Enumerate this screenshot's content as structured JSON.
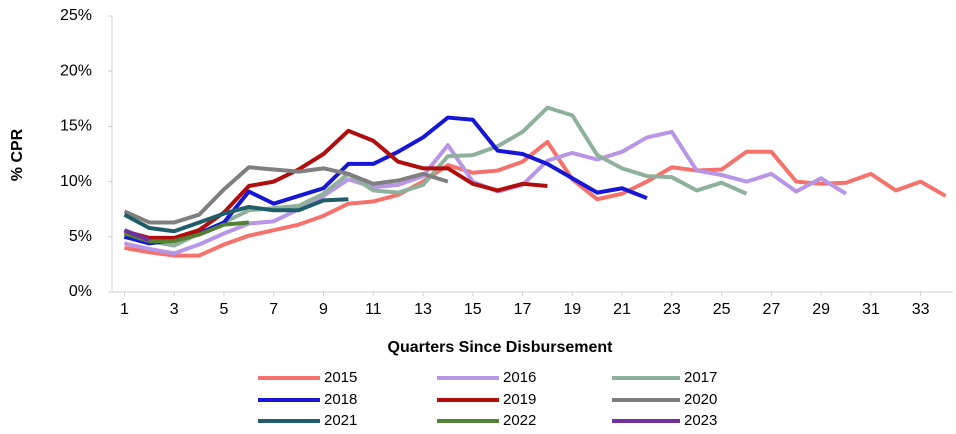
{
  "chart_data": {
    "type": "line",
    "x_label": "Quarters Since Disbursement",
    "y_label": "% CPR",
    "x": [
      1,
      2,
      3,
      4,
      5,
      6,
      7,
      8,
      9,
      10,
      11,
      12,
      13,
      14,
      15,
      16,
      17,
      18,
      19,
      20,
      21,
      22,
      23,
      24,
      25,
      26,
      27,
      28,
      29,
      30,
      31,
      32,
      33,
      34
    ],
    "xlim": [
      0.5,
      34.3
    ],
    "xticks": [
      1,
      3,
      5,
      7,
      9,
      11,
      13,
      15,
      17,
      19,
      21,
      23,
      25,
      27,
      29,
      31,
      33
    ],
    "ylim": [
      0,
      25
    ],
    "yticks": [
      {
        "value": 0,
        "label": "0%"
      },
      {
        "value": 5,
        "label": "5%"
      },
      {
        "value": 10,
        "label": "10%"
      },
      {
        "value": 15,
        "label": "15%"
      },
      {
        "value": 20,
        "label": "20%"
      },
      {
        "value": 25,
        "label": "25%"
      }
    ],
    "grid": false,
    "legend": "bottom",
    "series": [
      {
        "name": "2015",
        "color": "#f4726b",
        "values": [
          4.0,
          3.6,
          3.3,
          3.3,
          4.3,
          5.1,
          5.6,
          6.1,
          6.9,
          8.0,
          8.2,
          8.8,
          10.0,
          11.5,
          10.8,
          11.0,
          11.8,
          13.6,
          10.2,
          8.4,
          8.9,
          10.0,
          11.3,
          11.0,
          11.1,
          12.7,
          12.7,
          10.0,
          9.8,
          9.9,
          10.7,
          9.2,
          10.0,
          8.7
        ]
      },
      {
        "name": "2016",
        "color": "#b896e6",
        "values": [
          4.4,
          3.9,
          3.5,
          4.3,
          5.3,
          6.2,
          6.4,
          7.5,
          8.7,
          10.2,
          9.5,
          9.7,
          10.5,
          13.3,
          10.0,
          9.1,
          9.7,
          11.9,
          12.6,
          12.0,
          12.7,
          14.0,
          14.5,
          11.0,
          10.6,
          10.0,
          10.7,
          9.1,
          10.3,
          8.9,
          null,
          null,
          null,
          null
        ]
      },
      {
        "name": "2017",
        "color": "#8fb09a",
        "values": [
          5.1,
          4.6,
          4.2,
          5.3,
          6.3,
          7.4,
          7.6,
          7.8,
          8.9,
          10.7,
          9.2,
          9.0,
          9.7,
          12.3,
          12.4,
          13.2,
          14.5,
          16.7,
          16.0,
          12.4,
          11.2,
          10.5,
          10.4,
          9.2,
          9.9,
          8.9,
          null,
          null,
          null,
          null,
          null,
          null,
          null,
          null
        ]
      },
      {
        "name": "2018",
        "color": "#1616d6",
        "values": [
          5.0,
          4.4,
          4.7,
          5.3,
          6.3,
          9.1,
          8.0,
          8.7,
          9.4,
          11.6,
          11.6,
          12.7,
          14.0,
          15.8,
          15.6,
          12.8,
          12.5,
          11.6,
          10.3,
          9.0,
          9.4,
          8.5,
          null,
          null,
          null,
          null,
          null,
          null,
          null,
          null,
          null,
          null,
          null,
          null
        ]
      },
      {
        "name": "2019",
        "color": "#b00d0d",
        "values": [
          5.5,
          4.9,
          4.9,
          5.6,
          7.2,
          9.6,
          10.0,
          11.1,
          12.5,
          14.6,
          13.7,
          11.8,
          11.2,
          11.2,
          9.8,
          9.2,
          9.8,
          9.6,
          null,
          null,
          null,
          null,
          null,
          null,
          null,
          null,
          null,
          null,
          null,
          null,
          null,
          null,
          null,
          null
        ]
      },
      {
        "name": "2020",
        "color": "#7f7f7f",
        "values": [
          7.3,
          6.3,
          6.3,
          7.0,
          9.3,
          11.3,
          11.1,
          10.9,
          11.2,
          10.7,
          9.8,
          10.1,
          10.7,
          10.0,
          null,
          null,
          null,
          null,
          null,
          null,
          null,
          null,
          null,
          null,
          null,
          null,
          null,
          null,
          null,
          null,
          null,
          null,
          null,
          null
        ]
      },
      {
        "name": "2021",
        "color": "#1f5e68",
        "values": [
          7.0,
          5.8,
          5.5,
          6.3,
          7.1,
          7.7,
          7.4,
          7.4,
          8.3,
          8.4,
          null,
          null,
          null,
          null,
          null,
          null,
          null,
          null,
          null,
          null,
          null,
          null,
          null,
          null,
          null,
          null,
          null,
          null,
          null,
          null,
          null,
          null,
          null,
          null
        ]
      },
      {
        "name": "2022",
        "color": "#548235",
        "values": [
          5.3,
          4.6,
          4.6,
          5.2,
          6.1,
          6.3,
          null,
          null,
          null,
          null,
          null,
          null,
          null,
          null,
          null,
          null,
          null,
          null,
          null,
          null,
          null,
          null,
          null,
          null,
          null,
          null,
          null,
          null,
          null,
          null,
          null,
          null,
          null,
          null
        ]
      },
      {
        "name": "2023",
        "color": "#7030a0",
        "values": [
          5.6,
          4.7,
          null,
          null,
          null,
          null,
          null,
          null,
          null,
          null,
          null,
          null,
          null,
          null,
          null,
          null,
          null,
          null,
          null,
          null,
          null,
          null,
          null,
          null,
          null,
          null,
          null,
          null,
          null,
          null,
          null,
          null,
          null,
          null
        ]
      }
    ]
  }
}
